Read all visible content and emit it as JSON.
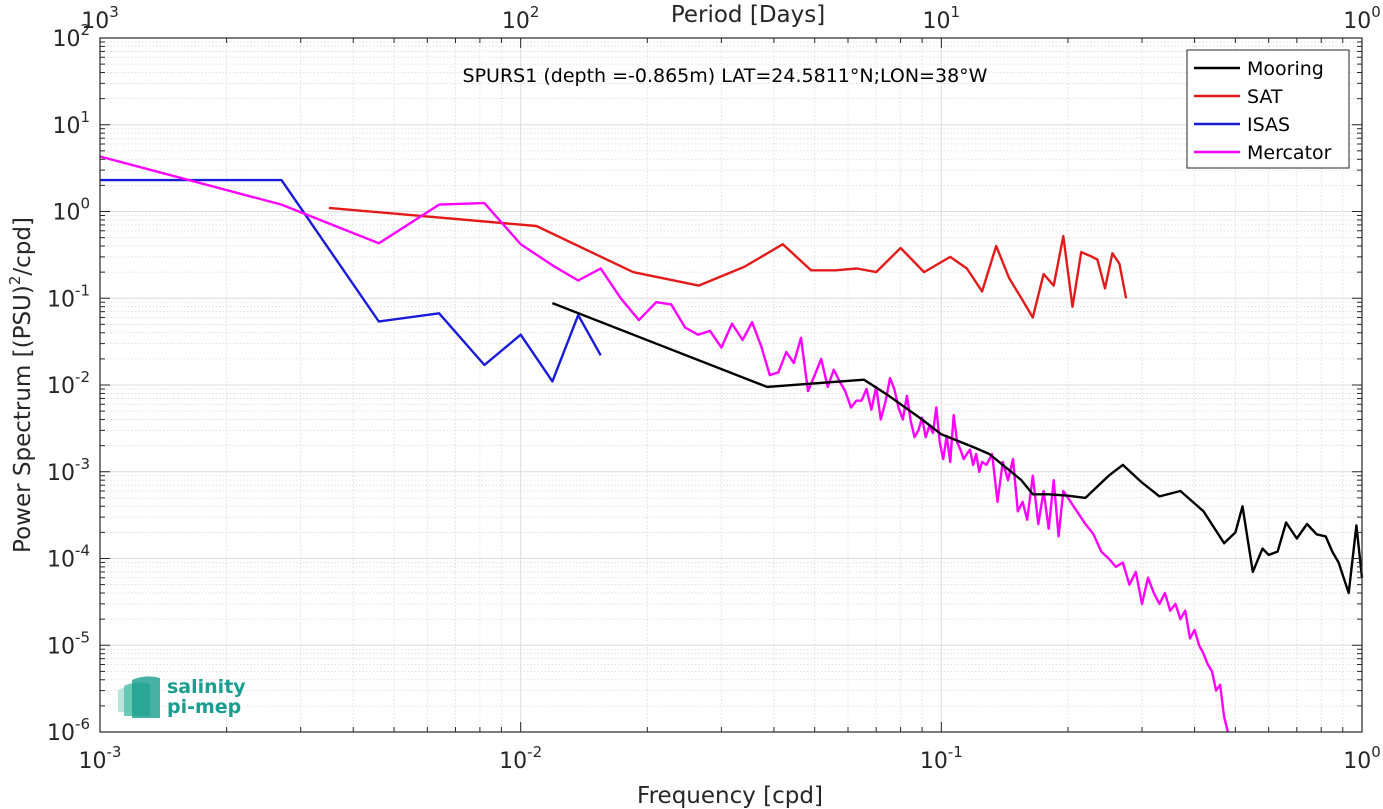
{
  "chart_data": {
    "type": "line",
    "title": "SPURS1 (depth =-0.865m) LAT=24.5811°N;LON=38°W",
    "xlabel": "Frequency [cpd]",
    "ylabel_prefix": "Power Spectrum [(PSU)",
    "ylabel_sup": "2",
    "ylabel_suffix": "/cpd]",
    "top_xlabel": "Period [Days]",
    "xscale": "log",
    "yscale": "log",
    "xlim": [
      0.001,
      1
    ],
    "ylim": [
      1e-06,
      100
    ],
    "grid": true,
    "legend_position": "top-right",
    "x_ticks": [
      {
        "base": "10",
        "exp": "-3"
      },
      {
        "base": "10",
        "exp": "-2"
      },
      {
        "base": "10",
        "exp": "-1"
      },
      {
        "base": "10",
        "exp": "0"
      }
    ],
    "top_ticks": [
      {
        "base": "10",
        "exp": "3"
      },
      {
        "base": "10",
        "exp": "2"
      },
      {
        "base": "10",
        "exp": "1"
      },
      {
        "base": "10",
        "exp": "0"
      }
    ],
    "y_ticks": [
      {
        "base": "10",
        "exp": "2"
      },
      {
        "base": "10",
        "exp": "1"
      },
      {
        "base": "10",
        "exp": "0"
      },
      {
        "base": "10",
        "exp": "-1"
      },
      {
        "base": "10",
        "exp": "-2"
      },
      {
        "base": "10",
        "exp": "-3"
      },
      {
        "base": "10",
        "exp": "-4"
      },
      {
        "base": "10",
        "exp": "-5"
      },
      {
        "base": "10",
        "exp": "-6"
      }
    ],
    "series": [
      {
        "name": "Mooring",
        "color": "#000000",
        "x": [
          0.0119,
          0.0385,
          0.0655,
          0.075,
          0.09,
          0.1,
          0.12,
          0.13,
          0.14,
          0.155,
          0.165,
          0.18,
          0.2,
          0.22,
          0.25,
          0.27,
          0.3,
          0.33,
          0.37,
          0.42,
          0.47,
          0.5,
          0.52,
          0.55,
          0.58,
          0.6,
          0.63,
          0.66,
          0.7,
          0.74,
          0.78,
          0.82,
          0.85,
          0.88,
          0.93,
          0.97,
          1.0
        ],
        "y": [
          0.088,
          0.0095,
          0.0115,
          0.0075,
          0.004,
          0.0027,
          0.0019,
          0.0016,
          0.0012,
          0.0008,
          0.00055,
          0.00055,
          0.00053,
          0.0005,
          0.0009,
          0.0012,
          0.00075,
          0.00052,
          0.0006,
          0.00035,
          0.00015,
          0.0002,
          0.0004,
          7e-05,
          0.00013,
          0.00011,
          0.00012,
          0.00026,
          0.00017,
          0.00025,
          0.00019,
          0.00018,
          0.00012,
          9e-05,
          4e-05,
          0.00024,
          6e-05
        ]
      },
      {
        "name": "SAT",
        "color": "#e31a1a",
        "x": [
          0.0035,
          0.0109,
          0.0185,
          0.0265,
          0.034,
          0.042,
          0.049,
          0.056,
          0.063,
          0.07,
          0.08,
          0.091,
          0.105,
          0.115,
          0.125,
          0.135,
          0.145,
          0.155,
          0.165,
          0.175,
          0.185,
          0.195,
          0.205,
          0.215,
          0.225,
          0.235,
          0.245,
          0.255,
          0.265,
          0.275
        ],
        "y": [
          1.1,
          0.68,
          0.2,
          0.14,
          0.23,
          0.42,
          0.21,
          0.21,
          0.22,
          0.2,
          0.38,
          0.2,
          0.3,
          0.22,
          0.12,
          0.4,
          0.17,
          0.1,
          0.06,
          0.19,
          0.14,
          0.52,
          0.08,
          0.34,
          0.31,
          0.28,
          0.13,
          0.33,
          0.25,
          0.1
        ]
      },
      {
        "name": "ISAS",
        "color": "#1a1ad9",
        "x": [
          0.001,
          0.0027,
          0.0046,
          0.0064,
          0.0082,
          0.01,
          0.0119,
          0.0137,
          0.0155
        ],
        "y": [
          2.3,
          2.3,
          0.054,
          0.067,
          0.017,
          0.038,
          0.011,
          0.064,
          0.022
        ]
      },
      {
        "name": "Mercator",
        "color": "#ff00ff",
        "x": [
          0.001,
          0.0027,
          0.0046,
          0.0064,
          0.0082,
          0.01,
          0.0119,
          0.0137,
          0.0155,
          0.0173,
          0.0191,
          0.021,
          0.0228,
          0.0246,
          0.0264,
          0.0282,
          0.03,
          0.0318,
          0.0337,
          0.0355,
          0.0373,
          0.0391,
          0.041,
          0.0428,
          0.0446,
          0.0464,
          0.0482,
          0.05,
          0.0518,
          0.0537,
          0.0555,
          0.0573,
          0.0591,
          0.061,
          0.0628,
          0.0646,
          0.0664,
          0.0682,
          0.07,
          0.0718,
          0.0737,
          0.0755,
          0.0773,
          0.0791,
          0.081,
          0.0828,
          0.0846,
          0.0864,
          0.0882,
          0.09,
          0.0918,
          0.0937,
          0.0955,
          0.0973,
          0.0991,
          0.101,
          0.103,
          0.105,
          0.107,
          0.109,
          0.111,
          0.113,
          0.115,
          0.117,
          0.119,
          0.121,
          0.123,
          0.125,
          0.128,
          0.132,
          0.136,
          0.14,
          0.144,
          0.148,
          0.152,
          0.156,
          0.16,
          0.165,
          0.17,
          0.175,
          0.18,
          0.185,
          0.19,
          0.195,
          0.2,
          0.21,
          0.22,
          0.23,
          0.24,
          0.25,
          0.26,
          0.27,
          0.28,
          0.29,
          0.3,
          0.31,
          0.32,
          0.33,
          0.34,
          0.35,
          0.36,
          0.37,
          0.38,
          0.39,
          0.4,
          0.41,
          0.42,
          0.43,
          0.44,
          0.45,
          0.46,
          0.47,
          0.48
        ],
        "y": [
          4.3,
          1.2,
          0.43,
          1.2,
          1.25,
          0.42,
          0.24,
          0.16,
          0.22,
          0.1,
          0.056,
          0.09,
          0.085,
          0.046,
          0.038,
          0.042,
          0.027,
          0.051,
          0.033,
          0.053,
          0.028,
          0.013,
          0.014,
          0.024,
          0.018,
          0.035,
          0.0085,
          0.013,
          0.02,
          0.0095,
          0.015,
          0.011,
          0.0085,
          0.0055,
          0.0066,
          0.0066,
          0.009,
          0.0052,
          0.0095,
          0.004,
          0.0065,
          0.012,
          0.009,
          0.0055,
          0.004,
          0.0075,
          0.0038,
          0.0025,
          0.003,
          0.0042,
          0.0025,
          0.0034,
          0.0028,
          0.0055,
          0.0022,
          0.0014,
          0.0026,
          0.0013,
          0.0045,
          0.0022,
          0.0018,
          0.0014,
          0.0016,
          0.0018,
          0.0012,
          0.0016,
          0.001,
          0.0013,
          0.0012,
          0.0016,
          0.00045,
          0.0013,
          0.0008,
          0.0014,
          0.00035,
          0.00045,
          0.00028,
          0.0009,
          0.00025,
          0.0006,
          0.00022,
          0.0008,
          0.00018,
          0.0006,
          0.0005,
          0.00035,
          0.00025,
          0.00019,
          0.00012,
          0.0001,
          8e-05,
          9e-05,
          5e-05,
          7e-05,
          3e-05,
          6e-05,
          4e-05,
          3e-05,
          4e-05,
          2.5e-05,
          3e-05,
          2e-05,
          2.5e-05,
          1.2e-05,
          1.5e-05,
          1e-05,
          8e-06,
          6e-06,
          5e-06,
          3e-06,
          3.5e-06,
          1.5e-06,
          1e-06
        ]
      }
    ]
  },
  "logo": {
    "line1": "salinity",
    "line2": "pi-mep",
    "color": "#1a9e8f"
  }
}
